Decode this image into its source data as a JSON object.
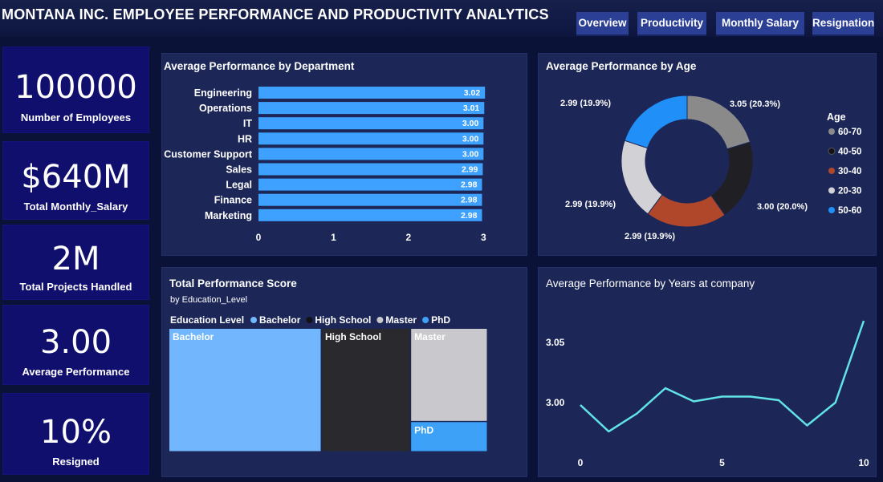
{
  "header": {
    "title": "MONTANA INC. EMPLOYEE PERFORMANCE AND PRODUCTIVITY ANALYTICS",
    "nav": [
      "Overview",
      "Productivity",
      "Monthly Salary",
      "Resignation"
    ]
  },
  "kpis": [
    {
      "value": "100000",
      "label": "Number of Employees"
    },
    {
      "value": "$640M",
      "label": "Total Monthly_Salary"
    },
    {
      "value": "2M",
      "label": "Total Projects Handled"
    },
    {
      "value": "3.00",
      "label": "Average Performance"
    },
    {
      "value": "10%",
      "label": "Resigned"
    }
  ],
  "panels": {
    "department": {
      "title": "Average Performance by Department"
    },
    "age": {
      "title": "Average Performance by Age"
    },
    "education": {
      "title": "Total Performance Score",
      "subtitle": "by Education_Level"
    },
    "years": {
      "title": "Average Performance by Years at company"
    }
  },
  "chart_data": [
    {
      "id": "department",
      "type": "bar",
      "orientation": "horizontal",
      "title": "Average Performance by Department",
      "categories": [
        "Engineering",
        "Operations",
        "IT",
        "HR",
        "Customer Support",
        "Sales",
        "Legal",
        "Finance",
        "Marketing"
      ],
      "values": [
        3.02,
        3.01,
        3.0,
        3.0,
        3.0,
        2.99,
        2.98,
        2.98,
        2.98
      ],
      "data_labels": [
        "3.02",
        "3.01",
        "3.00",
        "3.00",
        "3.00",
        "2.99",
        "2.98",
        "2.98",
        "2.98"
      ],
      "xlim": [
        0,
        3.05
      ],
      "xticks": [
        0,
        1,
        2,
        3
      ],
      "xtick_labels": [
        "0",
        "1",
        "2",
        "3"
      ],
      "color": "#3ea0ff"
    },
    {
      "id": "age",
      "type": "pie",
      "donut": true,
      "title": "Average Performance by Age",
      "legend_title": "Age",
      "legend_position": "right",
      "slices": [
        {
          "name": "60-70",
          "value": 3.05,
          "label": "3.05 (20.3%)",
          "color": "#8a8a8a"
        },
        {
          "name": "40-50",
          "value": 3.0,
          "label": "3.00 (20.0%)",
          "color": "#1f1f24"
        },
        {
          "name": "30-40",
          "value": 2.99,
          "label": "2.99 (19.9%)",
          "color": "#b0472a"
        },
        {
          "name": "20-30",
          "value": 2.99,
          "label": "2.99 (19.9%)",
          "color": "#d2d2d6"
        },
        {
          "name": "50-60",
          "value": 2.99,
          "label": "2.99 (19.9%)",
          "color": "#2090f8"
        }
      ]
    },
    {
      "id": "education",
      "type": "treemap",
      "title": "Total Performance Score",
      "subtitle": "by Education_Level",
      "legend_title": "Education Level",
      "legend_position": "top",
      "items": [
        {
          "name": "Bachelor",
          "value": 4.7,
          "color": "#72b7fe"
        },
        {
          "name": "High School",
          "value": 2.75,
          "color": "#2a2a2e"
        },
        {
          "name": "Master",
          "value": 1.79,
          "color": "#c9c8cd"
        },
        {
          "name": "PhD",
          "value": 0.58,
          "color": "#3da1f8"
        }
      ]
    },
    {
      "id": "years",
      "type": "line",
      "title": "Average Performance by Years at company",
      "x": [
        0,
        1,
        2,
        3,
        4,
        5,
        6,
        7,
        8,
        9,
        10
      ],
      "y": [
        2.998,
        2.976,
        2.991,
        3.012,
        3.001,
        3.005,
        3.005,
        3.002,
        2.981,
        3.0,
        3.068
      ],
      "xticks": [
        0,
        5,
        10
      ],
      "xtick_labels": [
        "0",
        "5",
        "10"
      ],
      "yticks": [
        3.0,
        3.05
      ],
      "ytick_labels": [
        "3.00",
        "3.05"
      ],
      "xlim": [
        0,
        10
      ],
      "ylim": [
        2.96,
        3.08
      ],
      "color": "#62e4e7"
    }
  ]
}
